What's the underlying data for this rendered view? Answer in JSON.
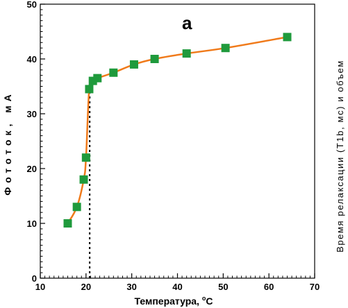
{
  "chart_data": {
    "type": "line",
    "panel_label": "a",
    "xlabel": "Температура, ",
    "xlabel_degree": "o",
    "xlabel_unit": "C",
    "ylabel": "Фототок, мА",
    "y2label": "Время релаксации (T1b, мс) и объем",
    "xlim": [
      10,
      70
    ],
    "ylim": [
      0,
      50
    ],
    "x_ticks": [
      10,
      20,
      30,
      40,
      50,
      60,
      70
    ],
    "y_ticks": [
      0,
      10,
      20,
      30,
      40,
      50
    ],
    "grid": false,
    "series": [
      {
        "x": [
          16,
          18,
          19.5,
          20,
          20.7,
          21.5,
          22.5,
          26,
          30.5,
          35,
          42,
          50.5,
          64
        ],
        "y": [
          10,
          13,
          18,
          22,
          34.5,
          36,
          36.5,
          37.5,
          39,
          40,
          41,
          42,
          44
        ],
        "line_color": "#f07a1a",
        "marker_color": "#1f9a3c",
        "marker": "square"
      }
    ],
    "annotations": [
      {
        "type": "vertical-dotted-line",
        "x": 20.8,
        "y_from": 0,
        "y_to": 34.5
      }
    ]
  }
}
